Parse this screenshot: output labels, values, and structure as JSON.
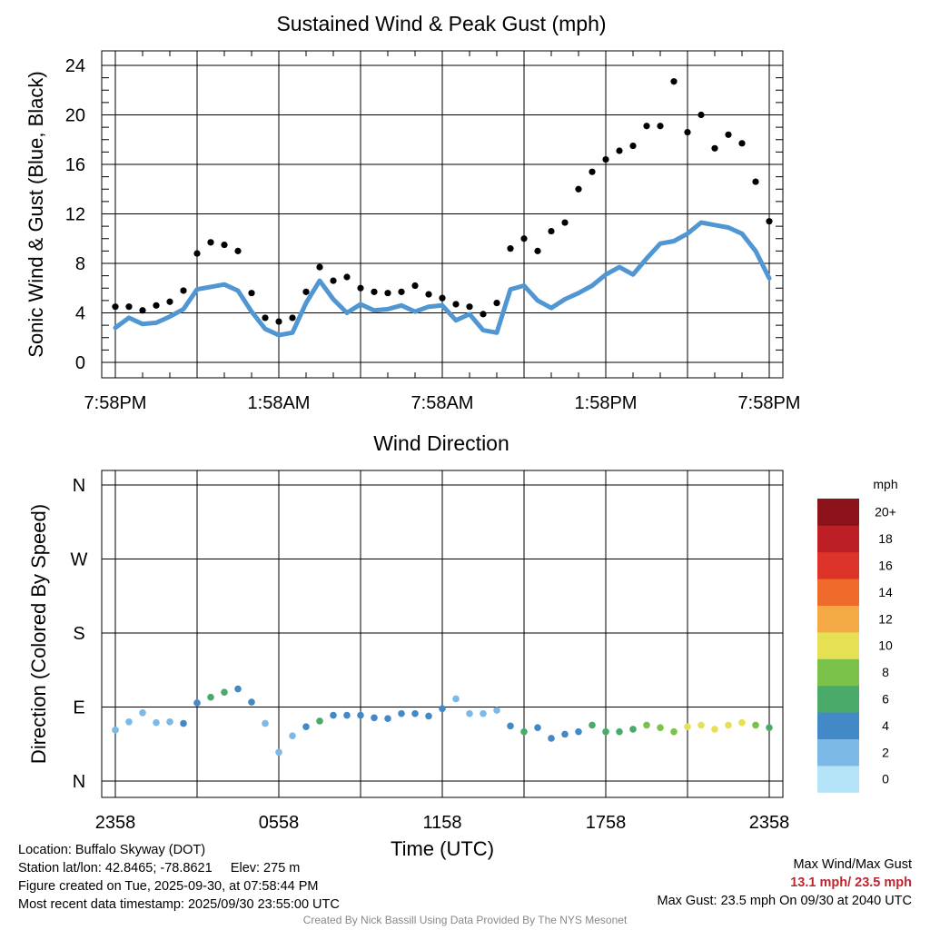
{
  "chart_data": [
    {
      "type": "line",
      "title": "Sustained Wind & Peak Gust (mph)",
      "ylabel": "Sonic Wind & Gust (Blue, Black)",
      "ylim": [
        0,
        24
      ],
      "yticks": [
        0,
        4,
        8,
        12,
        16,
        20,
        24
      ],
      "xlim_hours": [
        0,
        24
      ],
      "xticks": [
        {
          "h": 0,
          "label": "7:58PM"
        },
        {
          "h": 6,
          "label": "1:58AM"
        },
        {
          "h": 12,
          "label": "7:58AM"
        },
        {
          "h": 18,
          "label": "1:58PM"
        },
        {
          "h": 24,
          "label": "7:58PM"
        }
      ],
      "series": [
        {
          "name": "Sustained Wind",
          "color": "#4f96d2",
          "style": "line",
          "x": [
            0,
            0.5,
            1,
            1.5,
            2,
            2.5,
            3,
            3.5,
            4,
            4.5,
            5,
            5.5,
            6,
            6.5,
            7,
            7.5,
            8,
            8.5,
            9,
            9.5,
            10,
            10.5,
            11,
            11.5,
            12,
            12.5,
            13,
            13.5,
            14,
            14.5,
            15,
            15.5,
            16,
            16.5,
            17,
            17.5,
            18,
            18.5,
            19,
            19.5,
            20,
            20.5,
            21,
            21.5,
            22,
            22.5,
            23,
            23.5,
            24
          ],
          "values": [
            2.8,
            3.6,
            3.1,
            3.2,
            3.7,
            4.3,
            5.9,
            6.1,
            6.3,
            5.8,
            4.1,
            2.7,
            2.2,
            2.4,
            4.8,
            6.6,
            5.1,
            4.0,
            4.7,
            4.2,
            4.3,
            4.6,
            4.1,
            4.5,
            4.6,
            3.4,
            3.9,
            2.6,
            2.4,
            5.9,
            6.2,
            5.0,
            4.4,
            5.1,
            5.6,
            6.2,
            7.1,
            7.7,
            7.1,
            8.4,
            9.6,
            9.8,
            10.4,
            11.3,
            11.1,
            10.9,
            10.4,
            9.0,
            6.8
          ]
        },
        {
          "name": "Peak Gust",
          "color": "#000000",
          "style": "points",
          "x": [
            0,
            0.5,
            1,
            1.5,
            2,
            2.5,
            3,
            3.5,
            4,
            4.5,
            5,
            5.5,
            6,
            6.5,
            7,
            7.5,
            8,
            8.5,
            9,
            9.5,
            10,
            10.5,
            11,
            11.5,
            12,
            12.5,
            13,
            13.5,
            14,
            14.5,
            15,
            15.5,
            16,
            16.5,
            17,
            17.5,
            18,
            18.5,
            19,
            19.5,
            20,
            20.5,
            21,
            21.5,
            22,
            22.5,
            23,
            23.5,
            24
          ],
          "values": [
            4.5,
            4.5,
            4.2,
            4.6,
            4.9,
            5.8,
            8.8,
            9.7,
            9.5,
            9.0,
            5.6,
            3.6,
            3.3,
            3.6,
            5.7,
            7.7,
            6.6,
            6.9,
            6.0,
            5.7,
            5.6,
            5.7,
            6.2,
            5.5,
            5.2,
            4.7,
            4.5,
            3.9,
            4.8,
            9.2,
            10.0,
            9.0,
            10.6,
            11.3,
            14.0,
            15.4,
            16.4,
            17.1,
            17.5,
            19.1,
            19.1,
            22.7,
            18.6,
            20.0,
            17.3,
            18.4,
            17.7,
            14.6,
            11.4
          ]
        }
      ]
    },
    {
      "type": "scatter",
      "title": "Wind Direction",
      "ylabel": "Direction (Colored By Speed)",
      "xlabel": "Time (UTC)",
      "ylim_deg": [
        0,
        360
      ],
      "yticks": [
        {
          "deg": 0,
          "label": "N"
        },
        {
          "deg": 90,
          "label": "E"
        },
        {
          "deg": 180,
          "label": "S"
        },
        {
          "deg": 270,
          "label": "W"
        },
        {
          "deg": 360,
          "label": "N"
        }
      ],
      "xticks": [
        {
          "h": 0,
          "label": "2358"
        },
        {
          "h": 6,
          "label": "0558"
        },
        {
          "h": 12,
          "label": "1158"
        },
        {
          "h": 18,
          "label": "1758"
        },
        {
          "h": 24,
          "label": "2358"
        }
      ],
      "x": [
        0,
        0.5,
        1,
        1.5,
        2,
        2.5,
        3,
        3.5,
        4,
        4.5,
        5,
        5.5,
        6,
        6.5,
        7,
        7.5,
        8,
        8.5,
        9,
        9.5,
        10,
        10.5,
        11,
        11.5,
        12,
        12.5,
        13,
        13.5,
        14,
        14.5,
        15,
        15.5,
        16,
        16.5,
        17,
        17.5,
        18,
        18.5,
        19,
        19.5,
        20,
        20.5,
        21,
        21.5,
        22,
        22.5,
        23,
        23.5,
        24
      ],
      "values": [
        62,
        72,
        83,
        71,
        72,
        70,
        95,
        102,
        108,
        112,
        96,
        70,
        35,
        55,
        66,
        73,
        80,
        80,
        80,
        77,
        76,
        82,
        82,
        79,
        88,
        100,
        82,
        82,
        86,
        67,
        60,
        65,
        52,
        57,
        60,
        68,
        60,
        60,
        63,
        68,
        65,
        60,
        66,
        68,
        63,
        68,
        71,
        68,
        65
      ],
      "speed_scale": {
        "unit": "mph",
        "labels": [
          "0",
          "2",
          "4",
          "6",
          "8",
          "10",
          "12",
          "14",
          "16",
          "18",
          "20+"
        ],
        "colors": [
          "#b5e4f8",
          "#7cb9e6",
          "#4389c8",
          "#4aaa69",
          "#7bc24b",
          "#e6e055",
          "#f5a944",
          "#ee6b2c",
          "#dd3329",
          "#be1f24",
          "#8b1319"
        ]
      }
    }
  ],
  "info": {
    "location": "Location: Buffalo Skyway (DOT)",
    "latlon": "Station lat/lon: 42.8465; -78.8621",
    "elev": "Elev: 275 m",
    "created": "Figure created on Tue, 2025-09-30, at 07:58:44 PM",
    "recent": "Most recent data timestamp: 2025/09/30 23:55:00 UTC",
    "max_title": "Max Wind/Max Gust",
    "max_values": "13.1 mph/ 23.5 mph",
    "max_gust": "Max Gust: 23.5 mph On 09/30 at 2040 UTC",
    "credit": "Created By Nick Bassill Using Data Provided By The NYS Mesonet"
  }
}
